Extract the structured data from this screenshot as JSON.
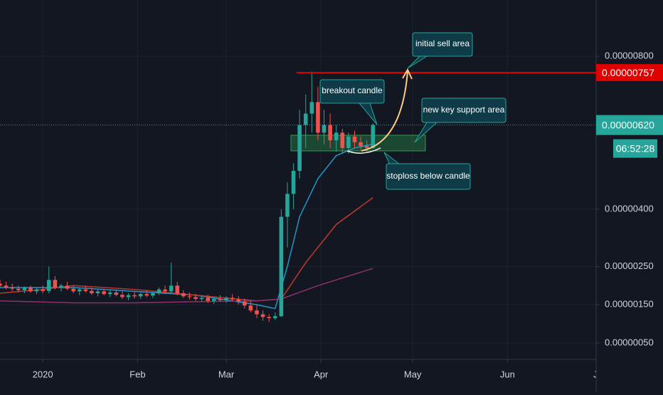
{
  "chart_data": {
    "type": "candlestick",
    "up_color": "#26a69a",
    "down_color": "#ef5350",
    "grid": true,
    "xlim": [
      -14,
      181
    ],
    "xticks": [
      {
        "value": 0,
        "label": "2020"
      },
      {
        "value": 31,
        "label": "Feb"
      },
      {
        "value": 60,
        "label": "Mar"
      },
      {
        "value": 91,
        "label": "Apr"
      },
      {
        "value": 121,
        "label": "May"
      },
      {
        "value": 152,
        "label": "Jun"
      },
      {
        "value": 182,
        "label": "Jul"
      }
    ],
    "ylim": [
      7e-08,
      9.47e-06
    ],
    "yticks": [
      {
        "value": 8e-06,
        "label": "0.00000800"
      },
      {
        "value": 4e-06,
        "label": "0.00000400"
      },
      {
        "value": 2.5e-06,
        "label": "0.00000250"
      },
      {
        "value": 1.5e-06,
        "label": "0.00000150"
      },
      {
        "value": 5e-07,
        "label": "0.00000050"
      }
    ],
    "candles": {
      "x": [
        -14,
        -12,
        -10,
        -8,
        -6,
        -4,
        -2,
        0,
        2,
        4,
        6,
        8,
        10,
        12,
        14,
        16,
        18,
        20,
        22,
        24,
        26,
        28,
        30,
        32,
        34,
        36,
        38,
        40,
        42,
        44,
        46,
        48,
        50,
        52,
        54,
        56,
        58,
        60,
        62,
        64,
        66,
        68,
        70,
        72,
        74,
        76,
        78,
        80,
        82,
        84,
        86,
        88,
        90,
        92,
        94,
        96,
        98,
        100,
        102,
        104,
        106,
        108
      ],
      "ohlc": [
        [
          2.05e-06,
          2.15e-06,
          1.95e-06,
          2e-06
        ],
        [
          2e-06,
          2.1e-06,
          1.9e-06,
          1.95e-06
        ],
        [
          1.95e-06,
          2.05e-06,
          1.85e-06,
          1.92e-06
        ],
        [
          1.92e-06,
          2e-06,
          1.82e-06,
          1.88e-06
        ],
        [
          1.88e-06,
          1.98e-06,
          1.8e-06,
          1.94e-06
        ],
        [
          1.94e-06,
          2e-06,
          1.82e-06,
          1.85e-06
        ],
        [
          1.85e-06,
          1.95e-06,
          1.78e-06,
          1.9e-06
        ],
        [
          1.9e-06,
          2e-06,
          1.8e-06,
          1.86e-06
        ],
        [
          1.86e-06,
          2.5e-06,
          1.8e-06,
          2.15e-06
        ],
        [
          2.15e-06,
          2.25e-06,
          1.9e-06,
          1.95e-06
        ],
        [
          1.95e-06,
          2.05e-06,
          1.85e-06,
          2e-06
        ],
        [
          2e-06,
          2.1e-06,
          1.88e-06,
          1.92e-06
        ],
        [
          1.92e-06,
          2e-06,
          1.8e-06,
          1.85e-06
        ],
        [
          1.85e-06,
          1.95e-06,
          1.75e-06,
          1.9e-06
        ],
        [
          1.9e-06,
          2e-06,
          1.82e-06,
          1.86e-06
        ],
        [
          1.86e-06,
          1.95e-06,
          1.76e-06,
          1.8e-06
        ],
        [
          1.8e-06,
          1.9e-06,
          1.72e-06,
          1.85e-06
        ],
        [
          1.85e-06,
          1.92e-06,
          1.75e-06,
          1.78e-06
        ],
        [
          1.78e-06,
          1.88e-06,
          1.7e-06,
          1.82e-06
        ],
        [
          1.82e-06,
          1.9e-06,
          1.72e-06,
          1.76e-06
        ],
        [
          1.76e-06,
          1.86e-06,
          1.65e-06,
          1.7e-06
        ],
        [
          1.7e-06,
          1.8e-06,
          1.62e-06,
          1.75e-06
        ],
        [
          1.75e-06,
          1.85e-06,
          1.66e-06,
          1.72e-06
        ],
        [
          1.72e-06,
          1.82e-06,
          1.65e-06,
          1.78e-06
        ],
        [
          1.78e-06,
          1.88e-06,
          1.7e-06,
          1.74e-06
        ],
        [
          1.74e-06,
          1.84e-06,
          1.68e-06,
          1.8e-06
        ],
        [
          1.8e-06,
          1.95e-06,
          1.75e-06,
          1.9e-06
        ],
        [
          1.9e-06,
          2e-06,
          1.78e-06,
          1.85e-06
        ],
        [
          1.85e-06,
          2.6e-06,
          1.8e-06,
          2e-06
        ],
        [
          2e-06,
          2.1e-06,
          1.75e-06,
          1.8e-06
        ],
        [
          1.8e-06,
          1.88e-06,
          1.68e-06,
          1.72e-06
        ],
        [
          1.72e-06,
          1.82e-06,
          1.64e-06,
          1.7e-06
        ],
        [
          1.7e-06,
          1.78e-06,
          1.6e-06,
          1.65e-06
        ],
        [
          1.65e-06,
          1.75e-06,
          1.58e-06,
          1.68e-06
        ],
        [
          1.68e-06,
          1.76e-06,
          1.55e-06,
          1.6e-06
        ],
        [
          1.6e-06,
          1.7e-06,
          1.52e-06,
          1.65e-06
        ],
        [
          1.65e-06,
          1.75e-06,
          1.58e-06,
          1.62e-06
        ],
        [
          1.62e-06,
          1.72e-06,
          1.55e-06,
          1.68e-06
        ],
        [
          1.68e-06,
          1.78e-06,
          1.6e-06,
          1.64e-06
        ],
        [
          1.64e-06,
          1.72e-06,
          1.5e-06,
          1.58e-06
        ],
        [
          1.58e-06,
          1.66e-06,
          1.4e-06,
          1.48e-06
        ],
        [
          1.48e-06,
          1.6e-06,
          1.3e-06,
          1.35e-06
        ],
        [
          1.35e-06,
          1.5e-06,
          1.15e-06,
          1.25e-06
        ],
        [
          1.25e-06,
          1.35e-06,
          1.08e-06,
          1.18e-06
        ],
        [
          1.18e-06,
          1.25e-06,
          1.05e-06,
          1.15e-06
        ],
        [
          1.15e-06,
          1.3e-06,
          1.1e-06,
          1.2e-06
        ],
        [
          1.2e-06,
          4e-06,
          1.18e-06,
          3.8e-06
        ],
        [
          3.8e-06,
          4.7e-06,
          3e-06,
          4.4e-06
        ],
        [
          4.4e-06,
          5.2e-06,
          4e-06,
          5e-06
        ],
        [
          5e-06,
          6.6e-06,
          4.8e-06,
          6.2e-06
        ],
        [
          6.2e-06,
          7e-06,
          5.6e-06,
          6.5e-06
        ],
        [
          6.5e-06,
          7.6e-06,
          6e-06,
          6.8e-06
        ],
        [
          6.8e-06,
          7.2e-06,
          5.8e-06,
          6e-06
        ],
        [
          6e-06,
          6.6e-06,
          5.7e-06,
          6.2e-06
        ],
        [
          6.2e-06,
          6.5e-06,
          5.6e-06,
          5.8e-06
        ],
        [
          5.8e-06,
          6.2e-06,
          5.5e-06,
          6e-06
        ],
        [
          6e-06,
          6.1e-06,
          5.45e-06,
          5.6e-06
        ],
        [
          5.6e-06,
          6e-06,
          5.45e-06,
          5.9e-06
        ],
        [
          5.9e-06,
          6.05e-06,
          5.6e-06,
          5.75e-06
        ],
        [
          5.75e-06,
          5.9e-06,
          5.55e-06,
          5.65e-06
        ],
        [
          5.65e-06,
          5.8e-06,
          5.5e-06,
          5.6e-06
        ],
        [
          5.6e-06,
          6.25e-06,
          5.58e-06,
          6.2e-06
        ]
      ]
    },
    "series": [
      {
        "color": "#2196c8",
        "x": [
          -14,
          10,
          30,
          50,
          70,
          76,
          80,
          84,
          90,
          96,
          102,
          108
        ],
        "values": [
          1.95e-06,
          1.95e-06,
          1.85e-06,
          1.75e-06,
          1.5e-06,
          1.4e-06,
          2.5e-06,
          3.8e-06,
          4.8e-06,
          5.4e-06,
          5.6e-06,
          5.7e-06
        ]
      },
      {
        "color": "#c0392b",
        "x": [
          -14,
          0,
          10,
          30,
          50,
          70,
          78,
          86,
          96,
          108
        ],
        "values": [
          1.8e-06,
          1.9e-06,
          2e-06,
          1.9e-06,
          1.75e-06,
          1.6e-06,
          1.65e-06,
          2.6e-06,
          3.6e-06,
          4.3e-06
        ]
      },
      {
        "color": "#8e2f6e",
        "x": [
          -14,
          10,
          30,
          50,
          70,
          78,
          90,
          108
        ],
        "values": [
          1.6e-06,
          1.55e-06,
          1.55e-06,
          1.58e-06,
          1.6e-06,
          1.65e-06,
          2e-06,
          2.45e-06
        ]
      }
    ],
    "sell_line": {
      "value": 7.57e-06,
      "label": "0.00000757",
      "color": "#e00000",
      "start_x": 83
    },
    "last_price": {
      "value": 6.2e-06,
      "label": "0.00000620",
      "countdown": "06:52:28",
      "color": "#26a69a"
    },
    "annotations": [
      "initial sell area",
      "breakout candle",
      "new key support area",
      "stoploss below candle"
    ]
  }
}
